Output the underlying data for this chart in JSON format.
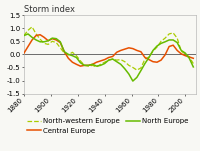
{
  "title": "Storm index",
  "xlim": [
    1880,
    2008
  ],
  "ylim": [
    -1.5,
    1.5
  ],
  "xticks": [
    1880,
    1900,
    1920,
    1940,
    1960,
    1980,
    2000
  ],
  "yticks": [
    -1.5,
    -1.0,
    -0.5,
    0.0,
    0.5,
    1.0,
    1.5
  ],
  "series": {
    "nw_europe": {
      "label": "North-western Europe",
      "color": "#aacc00",
      "linestyle": "dashed",
      "linewidth": 0.9,
      "x": [
        1880,
        1883,
        1886,
        1889,
        1892,
        1895,
        1898,
        1901,
        1904,
        1907,
        1910,
        1913,
        1916,
        1919,
        1922,
        1925,
        1928,
        1931,
        1934,
        1937,
        1940,
        1943,
        1946,
        1949,
        1952,
        1955,
        1958,
        1961,
        1964,
        1967,
        1970,
        1973,
        1976,
        1979,
        1982,
        1985,
        1988,
        1991,
        1994,
        1997,
        2000,
        2003,
        2006
      ],
      "y": [
        0.72,
        0.92,
        1.05,
        0.78,
        0.58,
        0.42,
        0.38,
        0.5,
        0.45,
        0.25,
        0.05,
        -0.02,
        0.08,
        -0.05,
        -0.25,
        -0.42,
        -0.45,
        -0.42,
        -0.48,
        -0.38,
        -0.3,
        -0.22,
        -0.18,
        -0.22,
        -0.2,
        -0.28,
        -0.42,
        -0.5,
        -0.6,
        -0.52,
        -0.18,
        -0.1,
        0.12,
        0.28,
        0.5,
        0.62,
        0.78,
        0.82,
        0.62,
        0.12,
        0.02,
        -0.1,
        -0.35
      ]
    },
    "central_europe": {
      "label": "Central Europe",
      "color": "#e85000",
      "linestyle": "solid",
      "linewidth": 1.1,
      "x": [
        1880,
        1883,
        1886,
        1889,
        1892,
        1895,
        1898,
        1901,
        1904,
        1907,
        1910,
        1913,
        1916,
        1919,
        1922,
        1925,
        1928,
        1931,
        1934,
        1937,
        1940,
        1943,
        1946,
        1949,
        1952,
        1955,
        1958,
        1961,
        1964,
        1967,
        1970,
        1973,
        1976,
        1979,
        1982,
        1985,
        1988,
        1991,
        1994,
        1997,
        2000,
        2003,
        2006
      ],
      "y": [
        0.05,
        0.3,
        0.55,
        0.72,
        0.75,
        0.65,
        0.52,
        0.6,
        0.55,
        0.45,
        0.1,
        -0.15,
        -0.3,
        -0.38,
        -0.45,
        -0.42,
        -0.42,
        -0.38,
        -0.3,
        -0.25,
        -0.2,
        -0.12,
        -0.08,
        0.08,
        0.15,
        0.2,
        0.25,
        0.22,
        0.15,
        0.1,
        -0.12,
        -0.2,
        -0.28,
        -0.3,
        -0.22,
        -0.02,
        0.3,
        0.35,
        0.15,
        0.02,
        -0.05,
        -0.1,
        -0.15
      ]
    },
    "north_europe": {
      "label": "North Europe",
      "color": "#66bb00",
      "linestyle": "solid",
      "linewidth": 1.1,
      "x": [
        1880,
        1883,
        1886,
        1889,
        1892,
        1895,
        1898,
        1901,
        1904,
        1907,
        1910,
        1913,
        1916,
        1919,
        1922,
        1925,
        1928,
        1931,
        1934,
        1937,
        1940,
        1943,
        1946,
        1949,
        1952,
        1955,
        1958,
        1961,
        1964,
        1967,
        1970,
        1973,
        1976,
        1979,
        1982,
        1985,
        1988,
        1991,
        1994,
        1997,
        2000,
        2003,
        2006
      ],
      "y": [
        0.72,
        0.78,
        0.65,
        0.55,
        0.48,
        0.48,
        0.52,
        0.62,
        0.6,
        0.48,
        0.1,
        0.0,
        -0.05,
        -0.12,
        -0.32,
        -0.42,
        -0.42,
        -0.38,
        -0.45,
        -0.42,
        -0.35,
        -0.22,
        -0.18,
        -0.28,
        -0.38,
        -0.55,
        -0.75,
        -1.02,
        -0.88,
        -0.62,
        -0.35,
        -0.12,
        0.15,
        0.32,
        0.42,
        0.48,
        0.55,
        0.55,
        0.45,
        0.15,
        0.05,
        -0.15,
        -0.48
      ]
    }
  },
  "background_color": "#f8f8f4",
  "hline_color": "#555555",
  "tick_fontsize": 5.0,
  "title_fontsize": 6.0,
  "legend_fontsize": 5.0
}
